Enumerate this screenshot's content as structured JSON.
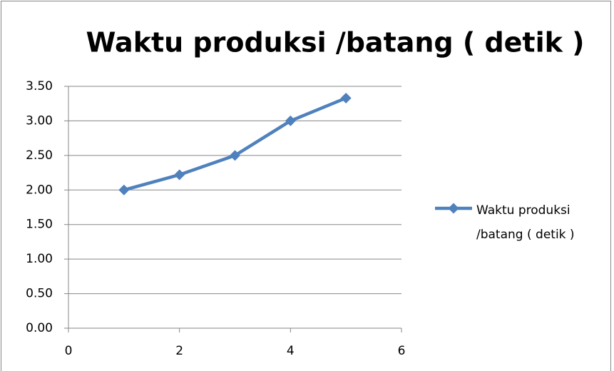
{
  "chart_data": {
    "type": "line",
    "title": "Waktu produksi /batang ( detik )",
    "x": [
      1,
      2,
      3,
      4,
      5
    ],
    "series": [
      {
        "name": "Waktu produksi /batang ( detik )",
        "color": "#4f81bd",
        "values": [
          2.0,
          2.22,
          2.5,
          3.0,
          3.33
        ]
      }
    ],
    "xlim": [
      0,
      6
    ],
    "xticks": [
      0,
      2,
      4,
      6
    ],
    "ylim": [
      0,
      3.5
    ],
    "yticks": [
      {
        "value": 0,
        "label": "0.00"
      },
      {
        "value": 0.5,
        "label": "0.50"
      },
      {
        "value": 1,
        "label": "1.00"
      },
      {
        "value": 1.5,
        "label": "1.50"
      },
      {
        "value": 2,
        "label": "2.00"
      },
      {
        "value": 2.5,
        "label": "2.50"
      },
      {
        "value": 3,
        "label": "3.00"
      },
      {
        "value": 3.5,
        "label": "3.50"
      }
    ],
    "grid": true,
    "legend": "right"
  }
}
